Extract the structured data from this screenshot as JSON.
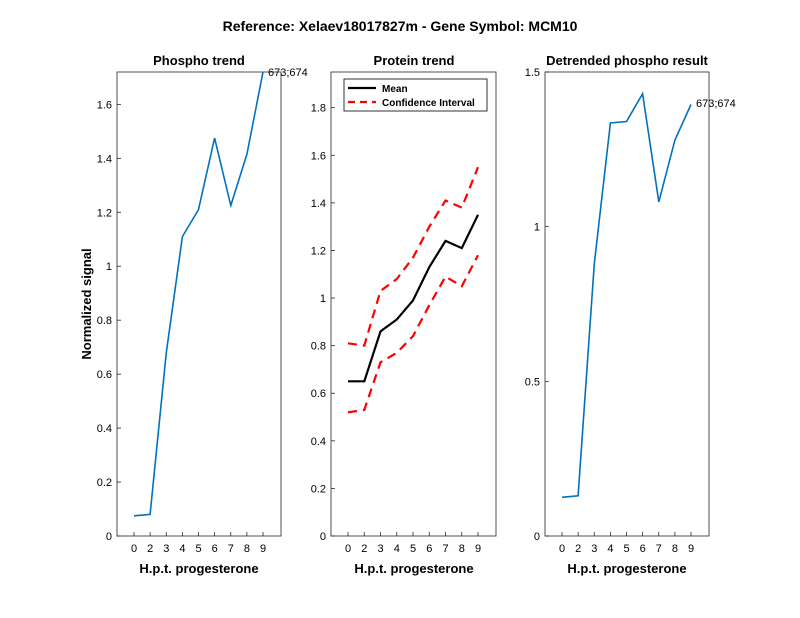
{
  "suptitle": "Reference:  Xelaev18017827m - Gene Symbol:  MCM10",
  "chart_data": [
    {
      "type": "line",
      "title": "Phospho trend",
      "xlabel": "H.p.t. progesterone",
      "ylabel": "Normalized signal",
      "x": [
        0,
        2,
        3,
        4,
        5,
        6,
        7,
        8,
        9
      ],
      "xticks": [
        "0",
        "2",
        "3",
        "4",
        "5",
        "6",
        "7",
        "8",
        "9"
      ],
      "yticks": [
        "0",
        "0.2",
        "0.4",
        "0.6",
        "0.8",
        "1",
        "1.2",
        "1.4",
        "1.6"
      ],
      "ytick_values": [
        0,
        0.2,
        0.4,
        0.6,
        0.8,
        1,
        1.2,
        1.4,
        1.6
      ],
      "ylim": [
        0,
        1.72
      ],
      "series": [
        {
          "values": [
            0.075,
            0.08,
            0.68,
            1.11,
            1.21,
            1.475,
            1.225,
            1.415,
            1.72
          ],
          "color": "#0072bd",
          "style": "solid"
        }
      ],
      "annotation": "673;674",
      "grid": false
    },
    {
      "type": "line",
      "title": "Protein trend",
      "xlabel": "H.p.t. progesterone",
      "ylabel": "",
      "x": [
        0,
        2,
        3,
        4,
        5,
        6,
        7,
        8,
        9
      ],
      "xticks": [
        "0",
        "2",
        "3",
        "4",
        "5",
        "6",
        "7",
        "8",
        "9"
      ],
      "yticks": [
        "0",
        "0.2",
        "0.4",
        "0.6",
        "0.8",
        "1",
        "1.2",
        "1.4",
        "1.6",
        "1.8"
      ],
      "ytick_values": [
        0,
        0.2,
        0.4,
        0.6,
        0.8,
        1,
        1.2,
        1.4,
        1.6,
        1.8
      ],
      "ylim": [
        0,
        1.95
      ],
      "legend": {
        "entries": [
          "Mean",
          "Confidence Interval"
        ],
        "position": "top-left"
      },
      "series": [
        {
          "name": "Mean",
          "values": [
            0.65,
            0.65,
            0.86,
            0.91,
            0.99,
            1.13,
            1.24,
            1.21,
            1.35
          ],
          "color": "#000000",
          "style": "solid"
        },
        {
          "name": "Confidence Interval",
          "values": [
            0.81,
            0.8,
            1.03,
            1.08,
            1.17,
            1.3,
            1.41,
            1.38,
            1.55
          ],
          "color": "#ff0000",
          "style": "dashed"
        },
        {
          "name": "Confidence Interval",
          "values": [
            0.52,
            0.53,
            0.73,
            0.77,
            0.84,
            0.97,
            1.09,
            1.05,
            1.18
          ],
          "color": "#ff0000",
          "style": "dashed"
        }
      ],
      "grid": false
    },
    {
      "type": "line",
      "title": "Detrended phospho result",
      "xlabel": "H.p.t. progesterone",
      "ylabel": "",
      "x": [
        0,
        2,
        3,
        4,
        5,
        6,
        7,
        8,
        9
      ],
      "xticks": [
        "0",
        "2",
        "3",
        "4",
        "5",
        "6",
        "7",
        "8",
        "9"
      ],
      "yticks": [
        "0",
        "0.5",
        "1",
        "1.5"
      ],
      "ytick_values": [
        0,
        0.5,
        1,
        1.5
      ],
      "ylim": [
        0,
        1.5
      ],
      "series": [
        {
          "values": [
            0.125,
            0.13,
            0.88,
            1.335,
            1.34,
            1.43,
            1.08,
            1.28,
            1.395
          ],
          "color": "#0072bd",
          "style": "solid"
        }
      ],
      "annotation": "673;674",
      "grid": false
    }
  ]
}
